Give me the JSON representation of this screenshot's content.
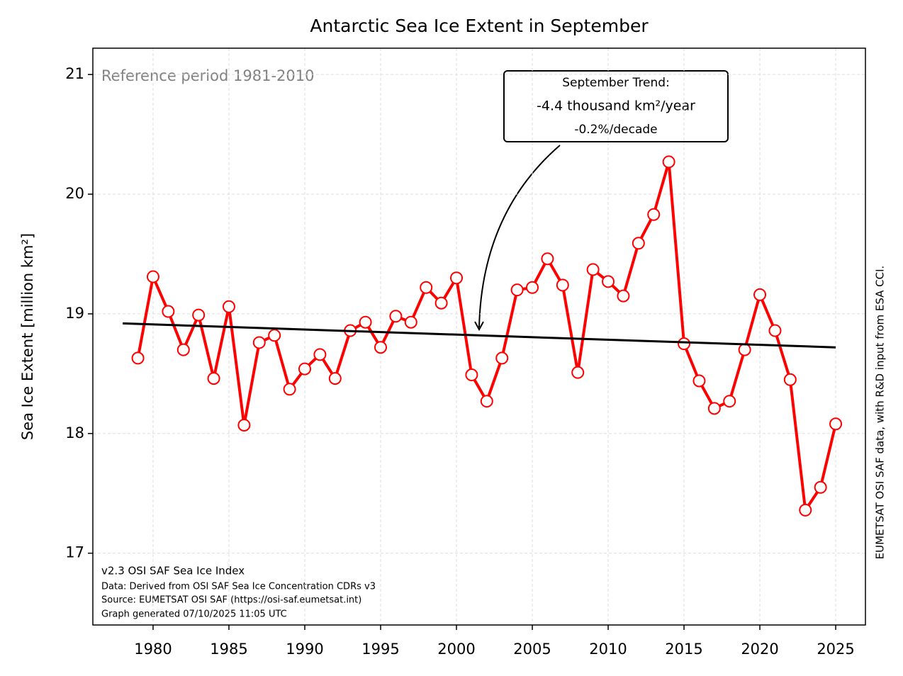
{
  "chart_data": {
    "type": "line",
    "title": "Antarctic Sea Ice Extent in September",
    "ylabel": "Sea Ice Extent [million km²]",
    "x": [
      1979,
      1980,
      1981,
      1982,
      1983,
      1984,
      1985,
      1986,
      1987,
      1988,
      1989,
      1990,
      1991,
      1992,
      1993,
      1994,
      1995,
      1996,
      1997,
      1998,
      1999,
      2000,
      2001,
      2002,
      2003,
      2004,
      2005,
      2006,
      2007,
      2008,
      2009,
      2010,
      2011,
      2012,
      2013,
      2014,
      2015,
      2016,
      2017,
      2018,
      2019,
      2020,
      2021,
      2022,
      2023,
      2024,
      2025
    ],
    "series": [
      {
        "color": "#ff0000",
        "marker_fill": "#ffffff",
        "values": [
          18.63,
          19.31,
          19.02,
          18.7,
          18.99,
          18.46,
          19.06,
          18.07,
          18.76,
          18.82,
          18.37,
          18.54,
          18.66,
          18.46,
          18.86,
          18.93,
          18.72,
          18.98,
          18.93,
          19.22,
          19.09,
          19.3,
          18.49,
          18.27,
          18.63,
          19.2,
          19.22,
          19.46,
          19.24,
          18.51,
          19.37,
          19.27,
          19.15,
          19.59,
          19.83,
          20.27,
          18.75,
          18.44,
          18.21,
          18.27,
          18.7,
          19.16,
          18.86,
          18.45,
          17.36,
          17.55,
          18.08
        ]
      },
      {
        "color": "#000000",
        "x": [
          1978,
          2025
        ],
        "values": [
          18.92,
          18.72
        ]
      }
    ],
    "xlim": [
      1976.03,
      2026.96
    ],
    "ylim": [
      16.4,
      21.22
    ],
    "xticks": [
      1980,
      1985,
      1990,
      1995,
      2000,
      2005,
      2010,
      2015,
      2020,
      2025
    ],
    "yticks": [
      17,
      18,
      19,
      20,
      21
    ],
    "grid": true,
    "annotations": {
      "reference": "Reference period 1981-2010",
      "trend_box": [
        "September Trend:",
        "-4.4 thousand km²/year",
        "-0.2%/decade"
      ],
      "footer": [
        "v2.3 OSI SAF Sea Ice Index",
        "Data: Derived from OSI SAF Sea Ice Concentration CDRs v3",
        "Source: EUMETSAT OSI SAF (https://osi-saf.eumetsat.int)",
        "Graph generated 07/10/2025 11:05 UTC"
      ],
      "credit": "EUMETSAT OSI SAF data, with R&D input from ESA CCI."
    }
  }
}
